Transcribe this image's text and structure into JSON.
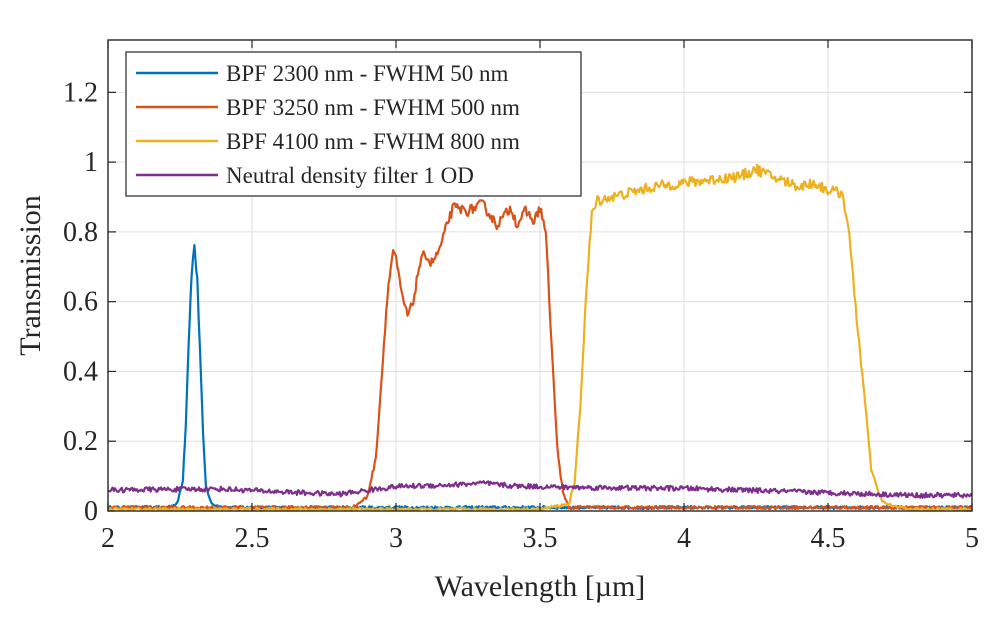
{
  "chart_data": {
    "type": "line",
    "title": "",
    "xlabel": "Wavelength [µm]",
    "ylabel": "Transmission",
    "xlim": [
      2,
      5
    ],
    "ylim": [
      0,
      1.35
    ],
    "xticks": [
      2,
      2.5,
      3,
      3.5,
      4,
      4.5,
      5
    ],
    "xtick_labels": [
      "2",
      "2.5",
      "3",
      "3.5",
      "4",
      "4.5",
      "5"
    ],
    "yticks": [
      0,
      0.2,
      0.4,
      0.6,
      0.8,
      1,
      1.2
    ],
    "ytick_labels": [
      "0",
      "0.2",
      "0.4",
      "0.6",
      "0.8",
      "1",
      "1.2"
    ],
    "grid": true,
    "legend_position": "top-left",
    "series": [
      {
        "name": "BPF 2300 nm - FWHM 50 nm",
        "color": "#0072BD",
        "x": [
          2.0,
          2.2,
          2.24,
          2.26,
          2.27,
          2.28,
          2.29,
          2.3,
          2.31,
          2.32,
          2.33,
          2.34,
          2.36,
          2.4,
          2.6,
          3.0,
          3.5,
          4.0,
          4.5,
          5.0
        ],
        "y": [
          0.01,
          0.01,
          0.02,
          0.09,
          0.25,
          0.48,
          0.68,
          0.76,
          0.66,
          0.45,
          0.22,
          0.07,
          0.02,
          0.01,
          0.01,
          0.01,
          0.01,
          0.01,
          0.01,
          0.01
        ]
      },
      {
        "name": "BPF 3250 nm - FWHM 500 nm",
        "color": "#D95319",
        "x": [
          2.0,
          2.6,
          2.85,
          2.9,
          2.93,
          2.95,
          2.97,
          2.99,
          3.0,
          3.02,
          3.04,
          3.06,
          3.08,
          3.1,
          3.12,
          3.14,
          3.16,
          3.18,
          3.2,
          3.25,
          3.3,
          3.35,
          3.4,
          3.42,
          3.45,
          3.48,
          3.5,
          3.52,
          3.54,
          3.56,
          3.58,
          3.6,
          3.7,
          4.0,
          4.5,
          5.0
        ],
        "y": [
          0.01,
          0.01,
          0.01,
          0.04,
          0.15,
          0.38,
          0.62,
          0.75,
          0.72,
          0.62,
          0.56,
          0.6,
          0.7,
          0.74,
          0.71,
          0.73,
          0.77,
          0.83,
          0.87,
          0.86,
          0.88,
          0.82,
          0.87,
          0.82,
          0.86,
          0.83,
          0.87,
          0.8,
          0.48,
          0.18,
          0.05,
          0.01,
          0.01,
          0.01,
          0.01,
          0.01
        ]
      },
      {
        "name": "BPF 4100 nm - FWHM 800 nm",
        "color": "#EDB120",
        "x": [
          2.0,
          3.0,
          3.5,
          3.6,
          3.62,
          3.64,
          3.66,
          3.68,
          3.7,
          3.75,
          3.8,
          3.9,
          4.0,
          4.1,
          4.2,
          4.25,
          4.3,
          4.4,
          4.45,
          4.5,
          4.55,
          4.57,
          4.6,
          4.63,
          4.65,
          4.68,
          4.7,
          4.75,
          4.8,
          5.0
        ],
        "y": [
          0.005,
          0.005,
          0.005,
          0.02,
          0.08,
          0.3,
          0.62,
          0.85,
          0.89,
          0.9,
          0.91,
          0.93,
          0.94,
          0.95,
          0.96,
          0.98,
          0.96,
          0.93,
          0.94,
          0.92,
          0.91,
          0.82,
          0.55,
          0.3,
          0.12,
          0.04,
          0.02,
          0.01,
          0.005,
          0.005
        ]
      },
      {
        "name": "Neutral density filter 1 OD",
        "color": "#7E2F8E",
        "x": [
          2.0,
          2.2,
          2.4,
          2.6,
          2.8,
          3.0,
          3.2,
          3.3,
          3.4,
          3.6,
          3.8,
          4.0,
          4.2,
          4.4,
          4.6,
          4.8,
          5.0
        ],
        "y": [
          0.06,
          0.062,
          0.063,
          0.055,
          0.048,
          0.07,
          0.075,
          0.08,
          0.072,
          0.068,
          0.066,
          0.065,
          0.06,
          0.055,
          0.05,
          0.045,
          0.045
        ]
      }
    ]
  }
}
